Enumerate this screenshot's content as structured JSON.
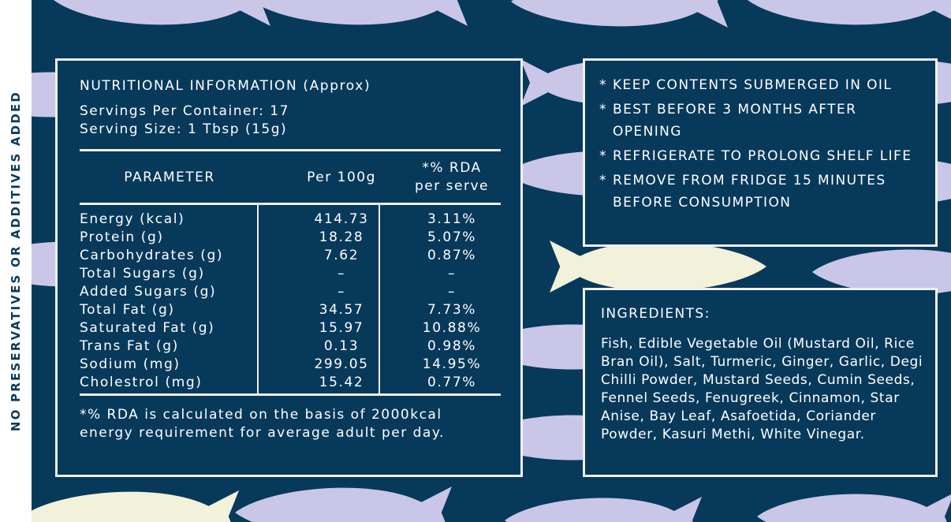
{
  "side_label": "NO PRESERVATIVES OR ADDITIVES ADDED",
  "nutrition": {
    "title": "NUTRITIONAL INFORMATION (Approx)",
    "servings": "Servings Per Container: 17",
    "serving_size": "Serving Size: 1 Tbsp (15g)",
    "headers": {
      "parameter": "PARAMETER",
      "per100": "Per 100g",
      "rda_line1": "*% RDA",
      "rda_line2": "per serve"
    },
    "rows": [
      {
        "param": "Energy (kcal)",
        "per100": "414.73",
        "rda": "3.11%"
      },
      {
        "param": "Protein (g)",
        "per100": "18.28",
        "rda": "5.07%"
      },
      {
        "param": "Carbohydrates (g)",
        "per100": "7.62",
        "rda": "0.87%"
      },
      {
        "param": "Total Sugars (g)",
        "per100": "–",
        "rda": "–"
      },
      {
        "param": "Added Sugars (g)",
        "per100": "–",
        "rda": "–"
      },
      {
        "param": "Total Fat (g)",
        "per100": "34.57",
        "rda": "7.73%"
      },
      {
        "param": "Saturated Fat (g)",
        "per100": "15.97",
        "rda": "10.88%"
      },
      {
        "param": "Trans Fat (g)",
        "per100": "0.13",
        "rda": "0.98%"
      },
      {
        "param": "Sodium (mg)",
        "per100": "299.05",
        "rda": "14.95%"
      },
      {
        "param": "Cholestrol (mg)",
        "per100": "15.42",
        "rda": "0.77%"
      }
    ],
    "footnote": "*% RDA is calculated on the basis of 2000kcal energy requirement for average adult per day."
  },
  "care": {
    "bullet": "*",
    "items": [
      "KEEP CONTENTS SUBMERGED IN OIL",
      "BEST BEFORE 3 MONTHS AFTER OPENING",
      "REFRIGERATE TO PROLONG SHELF LIFE",
      "REMOVE FROM FRIDGE 15 MINUTES BEFORE CONSUMPTION"
    ]
  },
  "ingredients": {
    "title": "INGREDIENTS:",
    "text": "Fish, Edible Vegetable Oil (Mustard Oil, Rice Bran Oil), Salt, Turmeric, Ginger, Garlic, Degi Chilli Powder, Mustard Seeds, Cumin Seeds, Fennel Seeds, Fenugreek, Cinnamon, Star Anise, Bay Leaf, Asafoetida, Coriander Powder, Kasuri Methi, White Vinegar."
  },
  "colors": {
    "background": "#07395a",
    "fish_lilac": "#c9c6e8",
    "fish_cream": "#f2f1da",
    "text": "#ffffff",
    "side_text": "#0a3a5c"
  }
}
